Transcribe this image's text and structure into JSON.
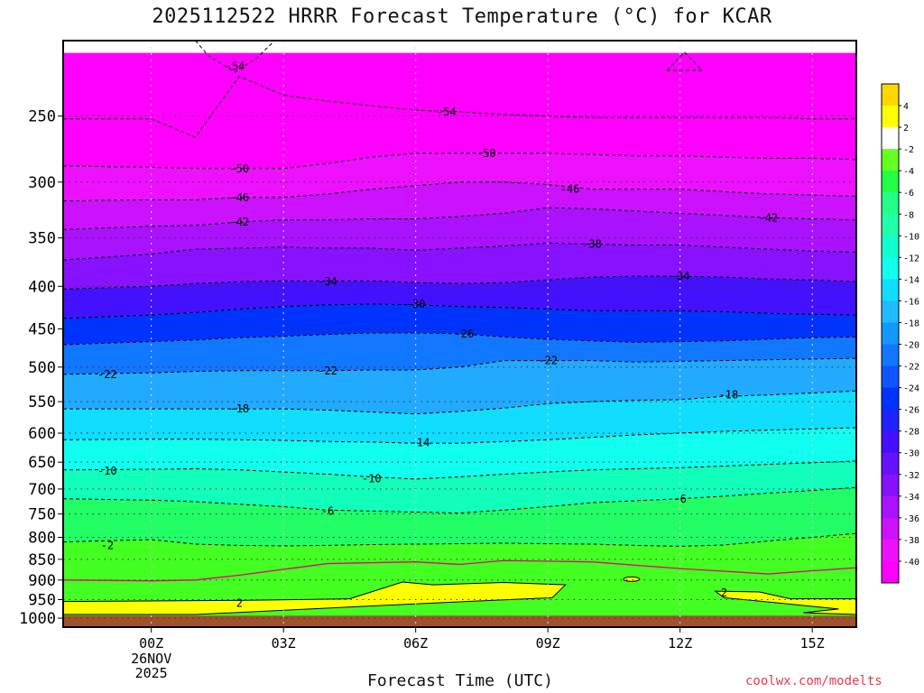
{
  "title": "2025112522 HRRR Forecast Temperature (°C) for KCAR",
  "footer": "coolwx.com/modelts",
  "colors": {
    "ground": "#a0522d",
    "freezing_line": "#e8007a",
    "contour": "#000000"
  },
  "chart_data": {
    "type": "heatmap",
    "title": "2025112522 HRRR Forecast Temperature (°C) for KCAR",
    "xlabel": "Forecast Time (UTC)",
    "x_unit": "hours from 2025-11-26 00Z",
    "xlim": [
      -2,
      16
    ],
    "x_ticks": [
      {
        "x": 0,
        "label": "00Z",
        "sub": [
          "26NOV",
          "2025"
        ]
      },
      {
        "x": 3,
        "label": "03Z"
      },
      {
        "x": 6,
        "label": "06Z"
      },
      {
        "x": 9,
        "label": "09Z"
      },
      {
        "x": 12,
        "label": "12Z"
      },
      {
        "x": 15,
        "label": "15Z"
      }
    ],
    "ylabel": "",
    "y_scale": "log",
    "ylim": [
      1025,
      203
    ],
    "y_ticks": [
      250,
      300,
      350,
      400,
      450,
      500,
      550,
      600,
      650,
      700,
      750,
      800,
      850,
      900,
      950,
      1000
    ],
    "colorbar": {
      "labels": [
        4,
        2,
        -2,
        -4,
        -6,
        -8,
        -10,
        -12,
        -14,
        -16,
        -18,
        -20,
        -22,
        -24,
        -26,
        -28,
        -30,
        -32,
        -34,
        -36,
        -38,
        -40
      ],
      "colors": [
        "#ffd700",
        "#ffff00",
        "#ffffff",
        "#66ff22",
        "#22ff44",
        "#22ff88",
        "#22ffaa",
        "#11ffcc",
        "#11ffee",
        "#11ddff",
        "#22bbff",
        "#1199ff",
        "#1177ff",
        "#1155ff",
        "#0033ff",
        "#2222ff",
        "#4411ff",
        "#6611ff",
        "#8811ff",
        "#aa11ff",
        "#cc11ff",
        "#ee11ff",
        "#ff00ff"
      ]
    },
    "labeled_isotherms": [
      {
        "value": -54,
        "labels": [
          [
            1.9,
            218
          ],
          [
            6.7,
            247
          ]
        ]
      },
      {
        "value": -50,
        "labels": [
          [
            2.0,
            289
          ],
          [
            7.6,
            277
          ]
        ]
      },
      {
        "value": -46,
        "labels": [
          [
            2.0,
            313
          ],
          [
            9.5,
            306
          ]
        ]
      },
      {
        "value": -42,
        "labels": [
          [
            2.0,
            335
          ],
          [
            14.0,
            331
          ]
        ]
      },
      {
        "value": -38,
        "labels": [
          [
            10.0,
            356
          ]
        ]
      },
      {
        "value": -34,
        "labels": [
          [
            4.0,
            395
          ],
          [
            12.0,
            389
          ]
        ]
      },
      {
        "value": -30,
        "labels": [
          [
            6.0,
            420
          ]
        ]
      },
      {
        "value": -26,
        "labels": [
          [
            7.1,
            456
          ]
        ]
      },
      {
        "value": -22,
        "labels": [
          [
            -1.0,
            510
          ],
          [
            4.0,
            505
          ],
          [
            9.0,
            491
          ]
        ]
      },
      {
        "value": -18,
        "labels": [
          [
            2.0,
            561
          ],
          [
            13.1,
            540
          ]
        ]
      },
      {
        "value": -14,
        "labels": [
          [
            6.1,
            616
          ]
        ]
      },
      {
        "value": -10,
        "labels": [
          [
            -1.0,
            666
          ],
          [
            5.0,
            680
          ]
        ]
      },
      {
        "value": -6,
        "labels": [
          [
            4.0,
            744
          ],
          [
            12.0,
            720
          ]
        ]
      },
      {
        "value": -2,
        "labels": [
          [
            -1.0,
            818
          ]
        ]
      },
      {
        "value": 2,
        "labels": [
          [
            2.0,
            960
          ],
          [
            13.0,
            932
          ]
        ]
      }
    ]
  }
}
